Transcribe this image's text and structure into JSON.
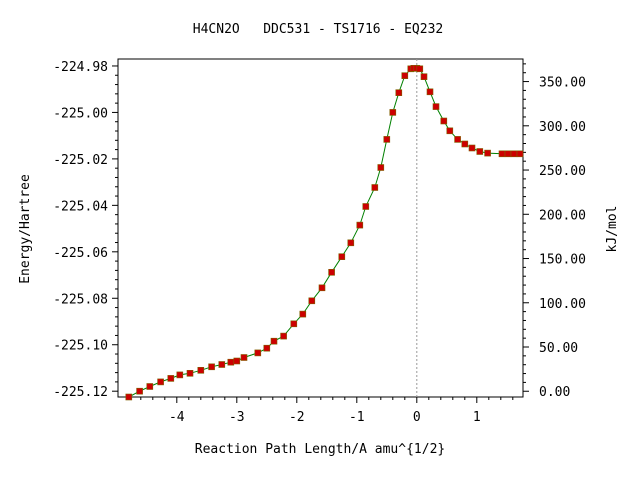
{
  "chart_data": {
    "type": "scatter",
    "title": "H4CN2O   DDC531 - TS1716 - EQ232",
    "xlabel": "Reaction Path Length/A amu^{1/2}",
    "ylabel": "Energy/Hartree",
    "y2label": "kJ/mol",
    "xlim": [
      -4.98,
      1.77
    ],
    "ylim": [
      -225.1225,
      -224.977
    ],
    "y2lim": [
      -6.5,
      375.5
    ],
    "x_ticks": [
      -4,
      -3,
      -2,
      -1,
      0,
      1
    ],
    "x_tick_labels": [
      "-4",
      "-3",
      "-2",
      "-1",
      "0",
      "1"
    ],
    "y_ticks": [
      -224.98,
      -225.0,
      -225.02,
      -225.04,
      -225.06,
      -225.08,
      -225.1,
      -225.12
    ],
    "y_tick_labels": [
      "-224.98",
      "-225.00",
      "-225.02",
      "-225.04",
      "-225.06",
      "-225.08",
      "-225.10",
      "-225.12"
    ],
    "y2_ticks": [
      0,
      50,
      100,
      150,
      200,
      250,
      300,
      350
    ],
    "y2_tick_labels": [
      "0.00",
      "50.00",
      "100.00",
      "150.00",
      "200.00",
      "250.00",
      "300.00",
      "350.00"
    ],
    "ts_x": 0.0,
    "colors": {
      "line": "#008000",
      "marker": "#cc0000",
      "ts_line": "#999999"
    },
    "x": [
      -4.8,
      -4.62,
      -4.45,
      -4.27,
      -4.1,
      -3.95,
      -3.78,
      -3.6,
      -3.42,
      -3.25,
      -3.1,
      -3.0,
      -2.88,
      -2.65,
      -2.5,
      -2.38,
      -2.22,
      -2.05,
      -1.9,
      -1.75,
      -1.58,
      -1.42,
      -1.25,
      -1.1,
      -0.95,
      -0.85,
      -0.7,
      -0.6,
      -0.5,
      -0.4,
      -0.3,
      -0.2,
      -0.1,
      -0.05,
      0.0,
      0.05,
      0.12,
      0.22,
      0.32,
      0.45,
      0.55,
      0.68,
      0.8,
      0.92,
      1.05,
      1.18,
      1.42,
      1.52,
      1.62,
      1.72
    ],
    "y": [
      -225.1225,
      -225.12,
      -225.118,
      -225.116,
      -225.1145,
      -225.113,
      -225.1123,
      -225.111,
      -225.1095,
      -225.1085,
      -225.1075,
      -225.107,
      -225.1055,
      -225.1035,
      -225.1015,
      -225.0985,
      -225.0963,
      -225.091,
      -225.0868,
      -225.0811,
      -225.0755,
      -225.0688,
      -225.0621,
      -225.0561,
      -225.0485,
      -225.0405,
      -225.0323,
      -225.0237,
      -225.0116,
      -225.0,
      -224.9915,
      -224.9842,
      -224.9812,
      -224.981,
      -224.981,
      -224.9812,
      -224.9846,
      -224.9911,
      -224.9975,
      -225.0037,
      -225.0079,
      -225.0116,
      -225.0136,
      -225.0153,
      -225.0168,
      -225.0175,
      -225.0178,
      -225.0178,
      -225.0178,
      -225.0178
    ]
  }
}
